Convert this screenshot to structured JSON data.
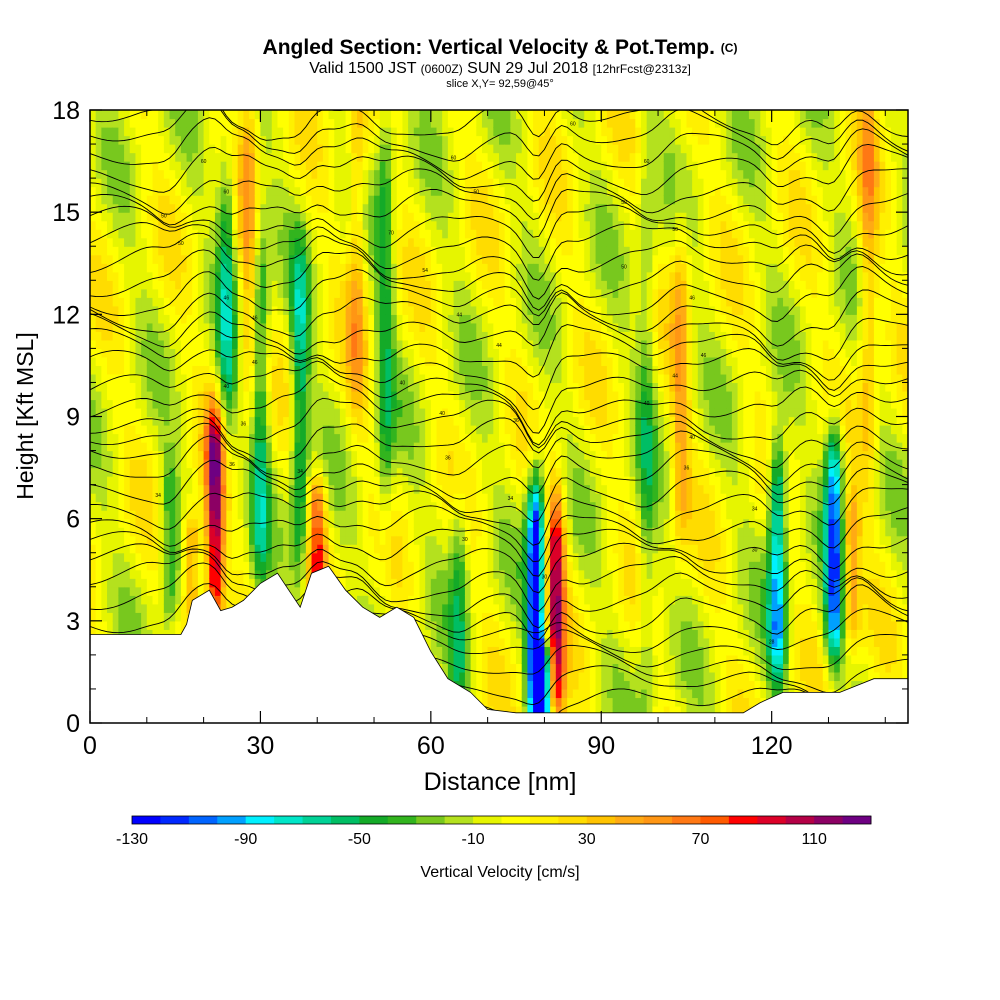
{
  "header": {
    "title": "Angled Section: Vertical Velocity & Pot.Temp.",
    "title_tag": "(C)",
    "valid_prefix": "Valid 1500 JST",
    "valid_utc": "(0600Z)",
    "valid_date": "SUN 29 Jul 2018",
    "forecast": "[12hrFcst@2313z]",
    "slice": "slice X,Y= 92,59@45°"
  },
  "chart_data": {
    "type": "heatmap",
    "xlabel": "Distance [nm]",
    "ylabel": "Height [Kft MSL]",
    "xlim": [
      0,
      144
    ],
    "ylim": [
      0,
      18
    ],
    "x_ticks": [
      "0",
      "30",
      "60",
      "90",
      "120"
    ],
    "y_ticks": [
      "0",
      "3",
      "6",
      "9",
      "12",
      "15",
      "18"
    ],
    "colorbar": {
      "label": "Vertical Velocity [cm/s]",
      "min": -130,
      "max": 130,
      "step": 10,
      "tick_labels": [
        "-130",
        "-90",
        "-50",
        "-10",
        "30",
        "70",
        "110"
      ],
      "colors": [
        "#0000ff",
        "#0028ff",
        "#0064ff",
        "#00a0ff",
        "#00f0ff",
        "#00e6c8",
        "#00d296",
        "#00be64",
        "#14aa28",
        "#32b41e",
        "#78c81e",
        "#b4e11e",
        "#e6f500",
        "#ffff00",
        "#fff000",
        "#ffdc00",
        "#ffc300",
        "#ffaa14",
        "#ff9614",
        "#ff7814",
        "#ff5a00",
        "#ff0000",
        "#dc0028",
        "#b40046",
        "#8c0064",
        "#6e0082"
      ]
    },
    "terrain_kft": [
      [
        0,
        2.6
      ],
      [
        16,
        2.6
      ],
      [
        17,
        2.9
      ],
      [
        18,
        3.6
      ],
      [
        21,
        3.9
      ],
      [
        23,
        3.3
      ],
      [
        25,
        3.4
      ],
      [
        27,
        3.6
      ],
      [
        30,
        4.1
      ],
      [
        33,
        4.4
      ],
      [
        35,
        3.9
      ],
      [
        37,
        3.4
      ],
      [
        39,
        4.4
      ],
      [
        42,
        4.6
      ],
      [
        45,
        3.9
      ],
      [
        48,
        3.4
      ],
      [
        51,
        3.1
      ],
      [
        54,
        3.4
      ],
      [
        57,
        3.1
      ],
      [
        60,
        2.1
      ],
      [
        63,
        1.3
      ],
      [
        67,
        0.9
      ],
      [
        70,
        0.4
      ],
      [
        75,
        0.3
      ],
      [
        85,
        0.3
      ],
      [
        95,
        0.3
      ],
      [
        115,
        0.3
      ],
      [
        118,
        0.6
      ],
      [
        122,
        0.9
      ],
      [
        126,
        0.9
      ],
      [
        132,
        0.9
      ],
      [
        138,
        1.3
      ],
      [
        144,
        1.3
      ]
    ],
    "vertical_velocity_features": [
      {
        "x": 22,
        "z_bottom": 3.5,
        "z_top": 8.5,
        "w": 110
      },
      {
        "x": 18,
        "z_bottom": 3.6,
        "z_top": 5.5,
        "w": 60
      },
      {
        "x": 40,
        "z_bottom": 4.5,
        "z_top": 6.5,
        "w": 70
      },
      {
        "x": 78.5,
        "z_bottom": 0.4,
        "z_top": 6.5,
        "w": -130
      },
      {
        "x": 82,
        "z_bottom": 0.4,
        "z_top": 6.0,
        "w": 100
      },
      {
        "x": 80,
        "z_bottom": 0.4,
        "z_top": 1.6,
        "w": -90
      },
      {
        "x": 121,
        "z_bottom": 2.0,
        "z_top": 7.5,
        "w": -90
      },
      {
        "x": 131,
        "z_bottom": 2.5,
        "z_top": 8.0,
        "w": -100
      },
      {
        "x": 134,
        "z_bottom": 3.0,
        "z_top": 6.0,
        "w": 50
      },
      {
        "x": 30,
        "z_bottom": 4.5,
        "z_top": 14.0,
        "w": -50
      },
      {
        "x": 37,
        "z_bottom": 5.0,
        "z_top": 13.0,
        "w": -60
      },
      {
        "x": 24,
        "z_bottom": 9.0,
        "z_top": 16.0,
        "w": -50
      },
      {
        "x": 52,
        "z_bottom": 6.5,
        "z_top": 18.0,
        "w": -40
      },
      {
        "x": 65,
        "z_bottom": 1.0,
        "z_top": 6.0,
        "w": -40
      },
      {
        "x": 98,
        "z_bottom": 1.0,
        "z_top": 16.0,
        "w": -30
      },
      {
        "x": 104,
        "z_bottom": 6.0,
        "z_top": 14.0,
        "w": 40
      },
      {
        "x": 28,
        "z_bottom": 10.0,
        "z_top": 18.0,
        "w": 40
      },
      {
        "x": 47,
        "z_bottom": 10.0,
        "z_top": 18.0,
        "w": 40
      },
      {
        "x": 14,
        "z_bottom": 3.5,
        "z_top": 7.0,
        "w": -40
      },
      {
        "x": 137,
        "z_bottom": 8.0,
        "z_top": 18.0,
        "w": 40
      }
    ],
    "theta_contour_labels": [
      {
        "x": 20,
        "z": 16.5,
        "text": "60"
      },
      {
        "x": 24,
        "z": 15.6,
        "text": "60"
      },
      {
        "x": 13,
        "z": 14.9,
        "text": "50"
      },
      {
        "x": 16,
        "z": 14.1,
        "text": "50"
      },
      {
        "x": 24,
        "z": 12.5,
        "text": "46"
      },
      {
        "x": 29,
        "z": 11.9,
        "text": "46"
      },
      {
        "x": 29,
        "z": 10.6,
        "text": "46"
      },
      {
        "x": 24,
        "z": 9.9,
        "text": "40"
      },
      {
        "x": 27,
        "z": 8.8,
        "text": "36"
      },
      {
        "x": 25,
        "z": 7.6,
        "text": "36"
      },
      {
        "x": 12,
        "z": 6.7,
        "text": "34"
      },
      {
        "x": 37,
        "z": 7.4,
        "text": "34"
      },
      {
        "x": 53,
        "z": 14.4,
        "text": "70"
      },
      {
        "x": 59,
        "z": 13.3,
        "text": "54"
      },
      {
        "x": 65,
        "z": 12.0,
        "text": "44"
      },
      {
        "x": 55,
        "z": 10.0,
        "text": "40"
      },
      {
        "x": 62,
        "z": 9.1,
        "text": "40"
      },
      {
        "x": 63,
        "z": 7.8,
        "text": "36"
      },
      {
        "x": 72,
        "z": 11.1,
        "text": "44"
      },
      {
        "x": 75,
        "z": 8.9,
        "text": "36"
      },
      {
        "x": 74,
        "z": 6.6,
        "text": "34"
      },
      {
        "x": 66,
        "z": 5.4,
        "text": "30"
      },
      {
        "x": 80,
        "z": 4.3,
        "text": "30"
      },
      {
        "x": 64,
        "z": 16.6,
        "text": "60"
      },
      {
        "x": 68,
        "z": 15.6,
        "text": "50"
      },
      {
        "x": 85,
        "z": 17.6,
        "text": "60"
      },
      {
        "x": 98,
        "z": 16.5,
        "text": "60"
      },
      {
        "x": 94,
        "z": 15.3,
        "text": "50"
      },
      {
        "x": 103,
        "z": 14.5,
        "text": "50"
      },
      {
        "x": 94,
        "z": 13.4,
        "text": "50"
      },
      {
        "x": 106,
        "z": 12.5,
        "text": "46"
      },
      {
        "x": 108,
        "z": 10.8,
        "text": "46"
      },
      {
        "x": 103,
        "z": 10.2,
        "text": "44"
      },
      {
        "x": 98,
        "z": 9.4,
        "text": "40"
      },
      {
        "x": 106,
        "z": 8.4,
        "text": "40"
      },
      {
        "x": 105,
        "z": 7.5,
        "text": "36"
      },
      {
        "x": 117,
        "z": 6.3,
        "text": "34"
      },
      {
        "x": 117,
        "z": 5.1,
        "text": "30"
      },
      {
        "x": 120,
        "z": 2.4,
        "text": "28"
      }
    ]
  }
}
